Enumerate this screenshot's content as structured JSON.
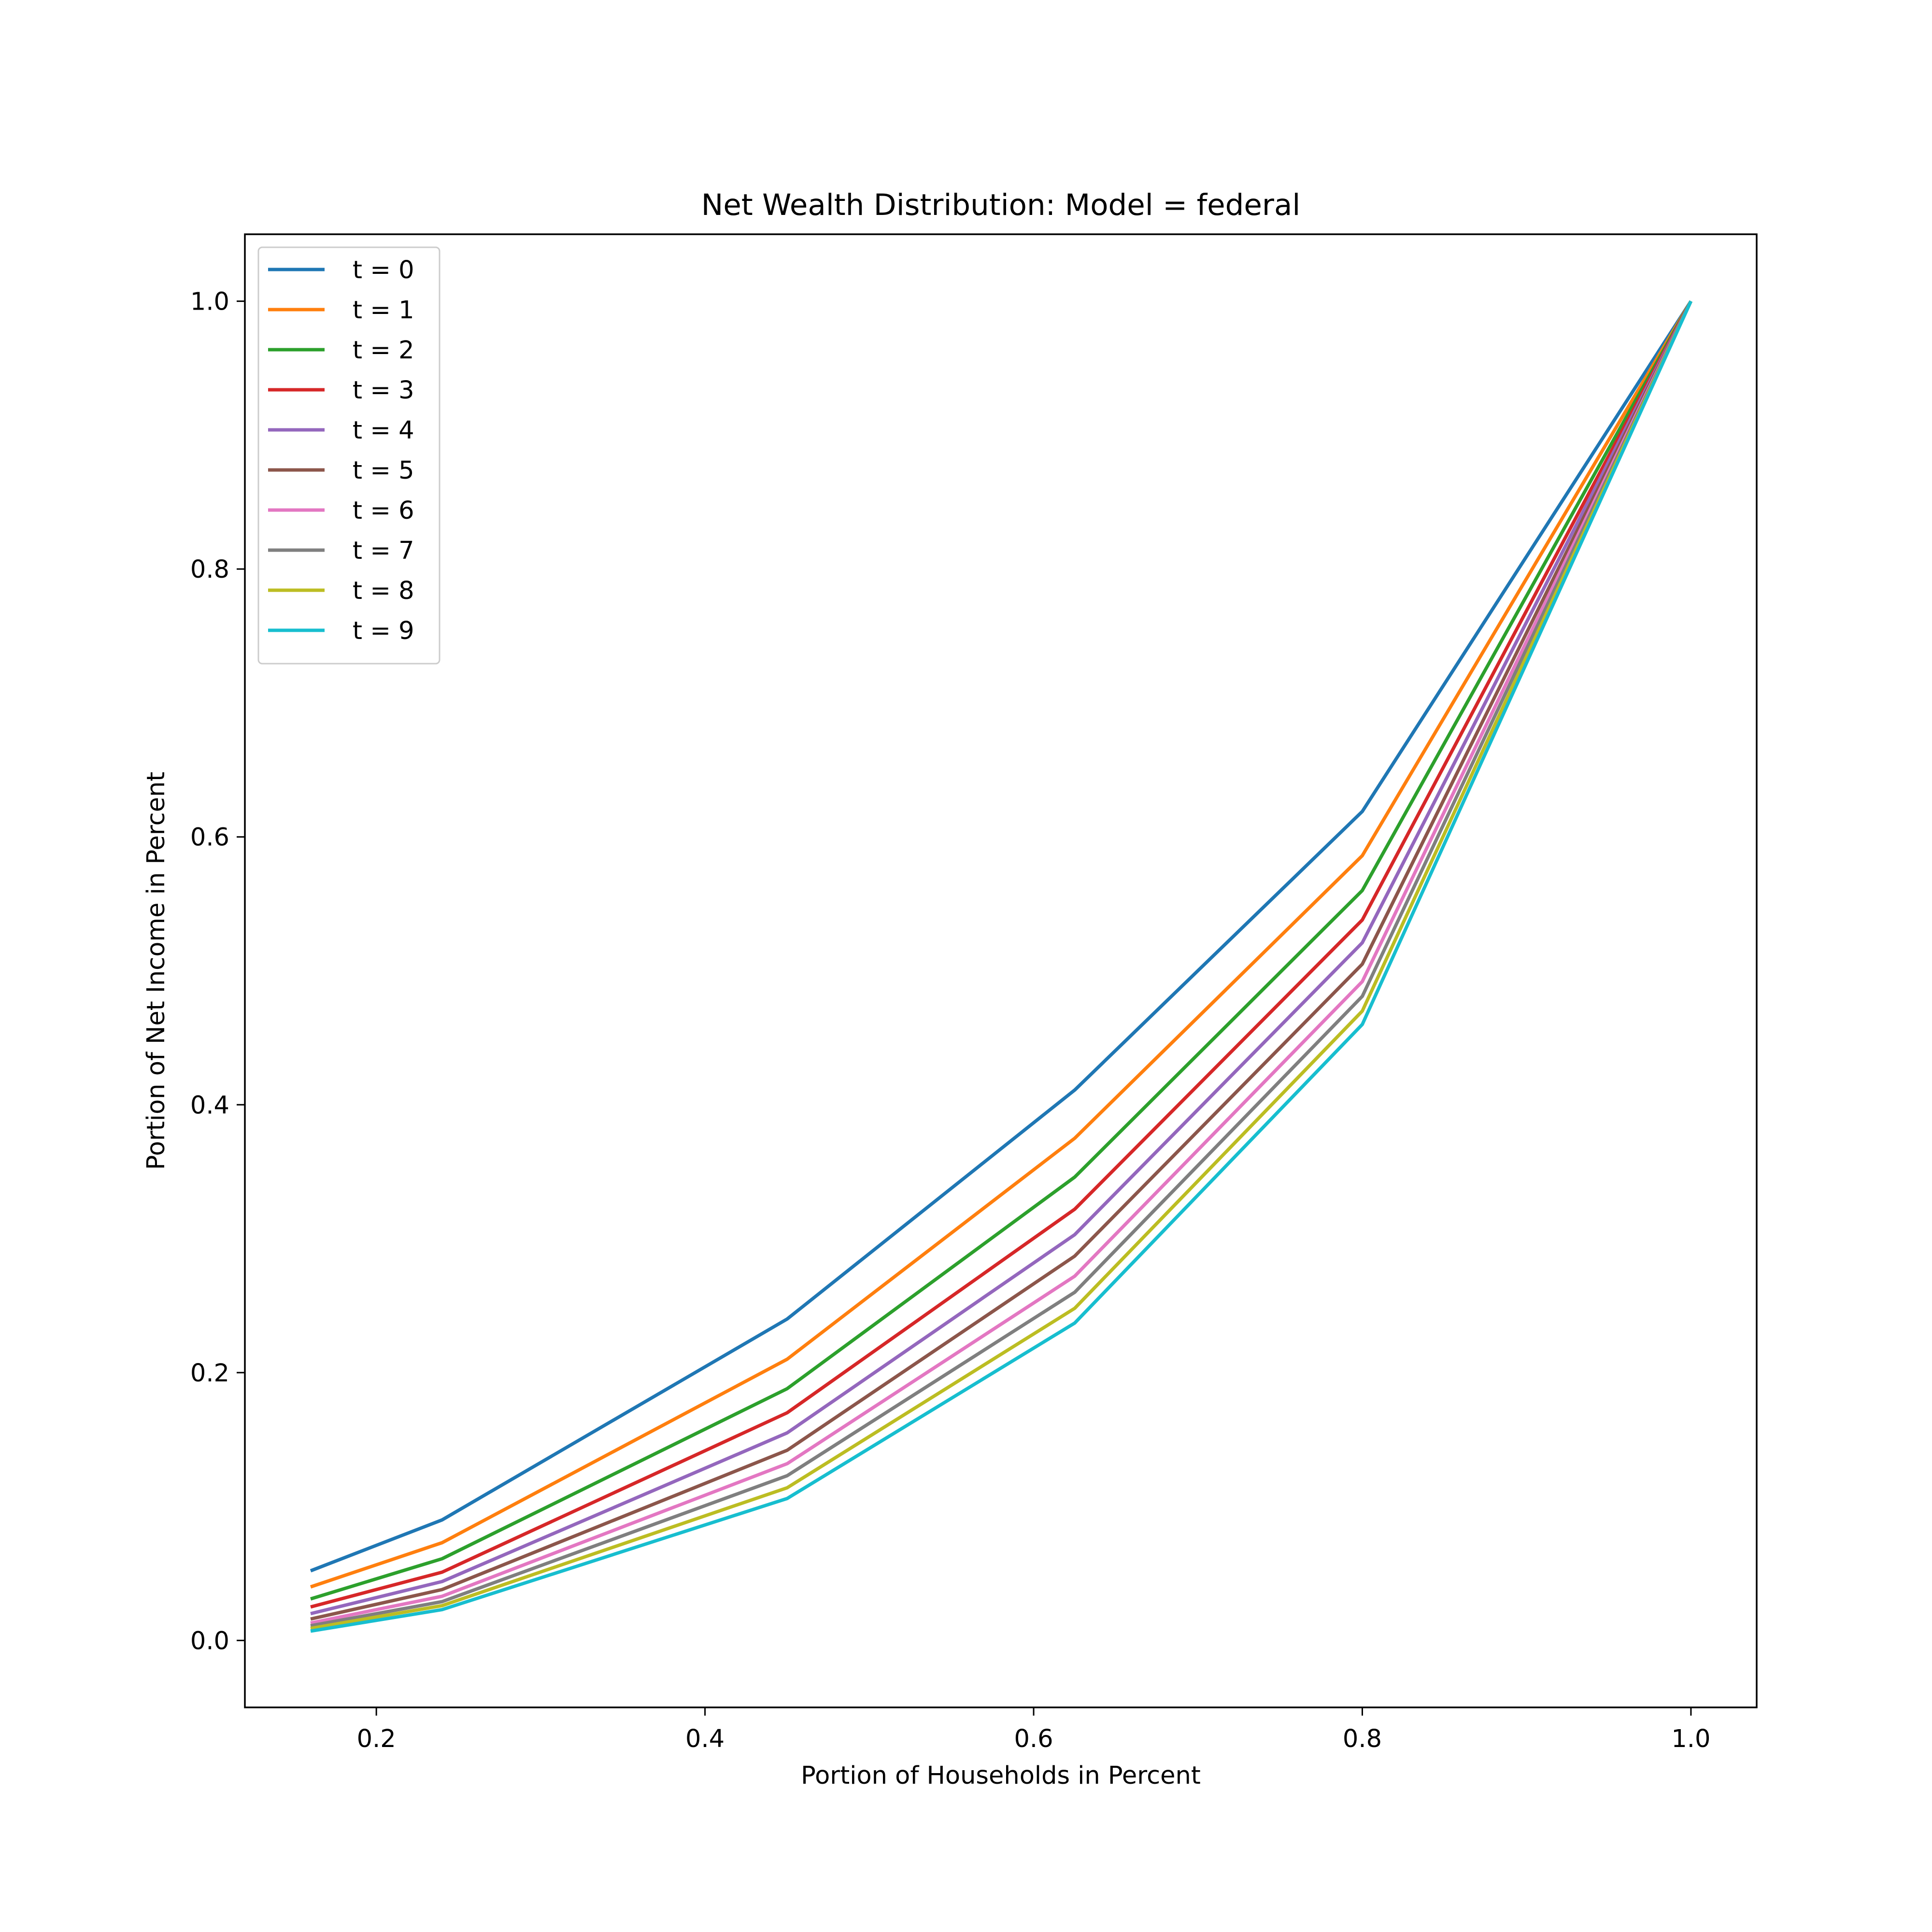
{
  "chart_data": {
    "type": "line",
    "title": "Net Wealth Distribution: Model = federal",
    "xlabel": "Portion of Households in Percent",
    "ylabel": "Portion of Net Income in Percent",
    "xlim": [
      0.12,
      1.04
    ],
    "ylim": [
      -0.05,
      1.05
    ],
    "xticks": [
      0.2,
      0.4,
      0.6,
      0.8,
      1.0
    ],
    "xtick_labels": [
      "0.2",
      "0.4",
      "0.6",
      "0.8",
      "1.0"
    ],
    "yticks": [
      0.0,
      0.2,
      0.4,
      0.6,
      0.8,
      1.0
    ],
    "ytick_labels": [
      "0.0",
      "0.2",
      "0.4",
      "0.6",
      "0.8",
      "1.0"
    ],
    "grid": false,
    "legend_position": "top-left",
    "x": [
      0.16,
      0.24,
      0.45,
      0.625,
      0.8,
      1.0
    ],
    "series": [
      {
        "name": "t = 0",
        "color": "#1f77b4",
        "values": [
          0.052,
          0.09,
          0.24,
          0.411,
          0.619,
          1.0
        ]
      },
      {
        "name": "t = 1",
        "color": "#ff7f0e",
        "values": [
          0.04,
          0.073,
          0.21,
          0.375,
          0.586,
          1.0
        ]
      },
      {
        "name": "t = 2",
        "color": "#2ca02c",
        "values": [
          0.031,
          0.061,
          0.188,
          0.346,
          0.56,
          1.0
        ]
      },
      {
        "name": "t = 3",
        "color": "#d62728",
        "values": [
          0.025,
          0.051,
          0.17,
          0.322,
          0.538,
          1.0
        ]
      },
      {
        "name": "t = 4",
        "color": "#9467bd",
        "values": [
          0.02,
          0.044,
          0.155,
          0.303,
          0.521,
          1.0
        ]
      },
      {
        "name": "t = 5",
        "color": "#8c564b",
        "values": [
          0.016,
          0.038,
          0.142,
          0.287,
          0.505,
          1.0
        ]
      },
      {
        "name": "t = 6",
        "color": "#e377c2",
        "values": [
          0.013,
          0.033,
          0.132,
          0.272,
          0.492,
          1.0
        ]
      },
      {
        "name": "t = 7",
        "color": "#7f7f7f",
        "values": [
          0.011,
          0.029,
          0.123,
          0.26,
          0.481,
          1.0
        ]
      },
      {
        "name": "t = 8",
        "color": "#bcbd22",
        "values": [
          0.009,
          0.026,
          0.114,
          0.248,
          0.47,
          1.0
        ]
      },
      {
        "name": "t = 9",
        "color": "#17becf",
        "values": [
          0.007,
          0.023,
          0.106,
          0.237,
          0.46,
          1.0
        ]
      }
    ]
  }
}
